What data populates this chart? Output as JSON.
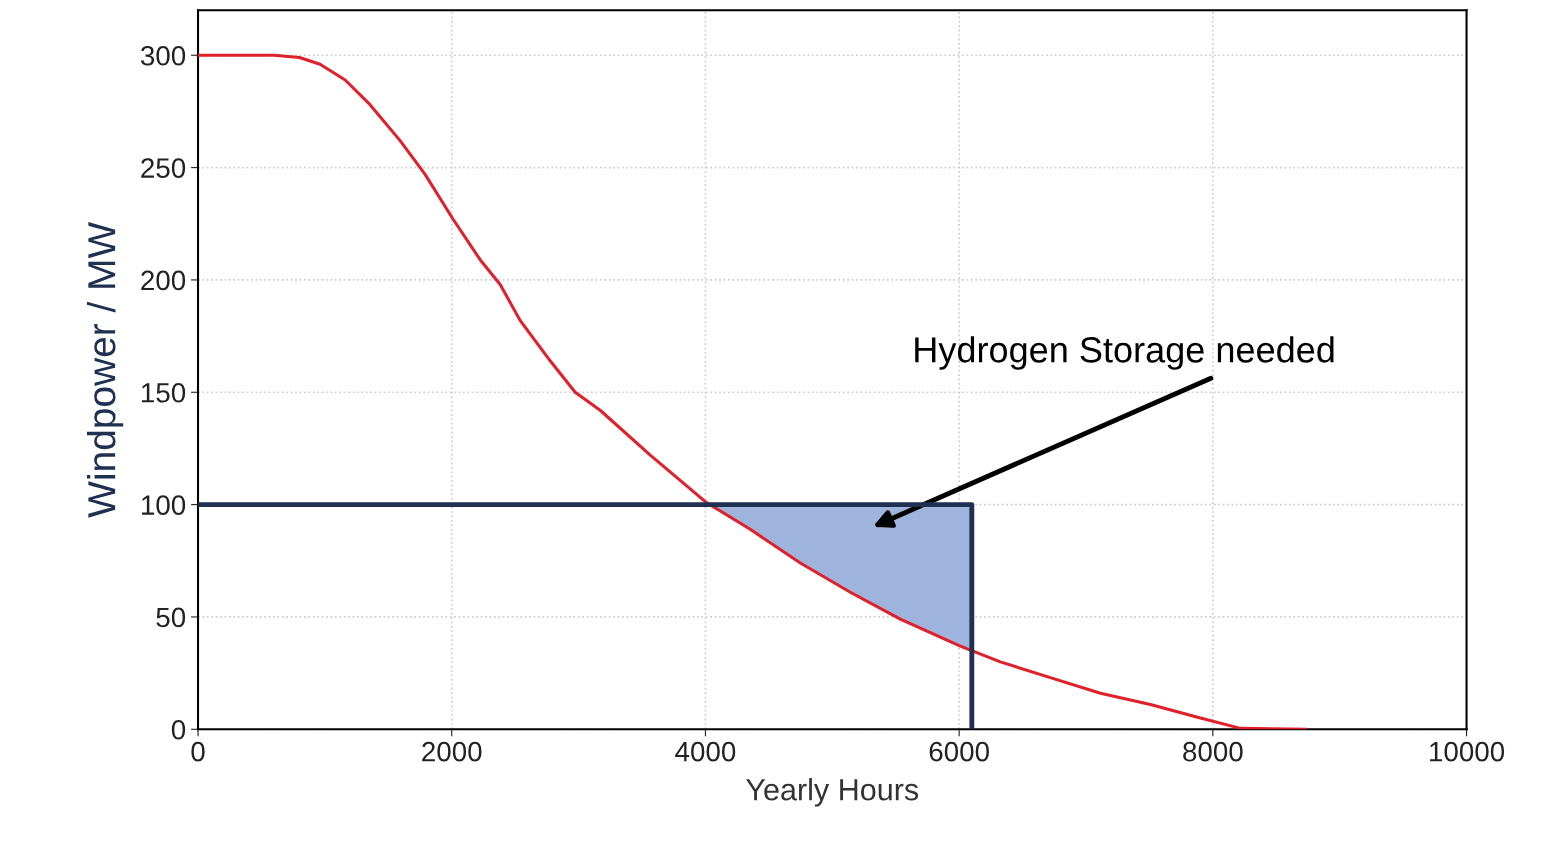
{
  "chart_data": {
    "type": "line",
    "xlabel": "Yearly Hours",
    "ylabel": "Windpower / MW",
    "xlim": [
      0,
      10000
    ],
    "xticks": [
      0,
      2000,
      4000,
      6000,
      8000,
      10000
    ],
    "ylim": [
      0,
      320
    ],
    "yticks": [
      0,
      50,
      100,
      150,
      200,
      250,
      300
    ],
    "grid": true,
    "marker": "none",
    "line_style": "solid",
    "series": [
      {
        "color": "#e0202a",
        "x": [
          0,
          600,
          800,
          962,
          1160,
          1356,
          1593,
          1790,
          2011,
          2224,
          2382,
          2539,
          2776,
          2973,
          3170,
          3565,
          4006,
          4353,
          4748,
          5142,
          5536,
          6009,
          6325,
          6719,
          7114,
          7508,
          7902,
          8218,
          8730
        ],
        "values": [
          300,
          300,
          299,
          296,
          289,
          278,
          262,
          247,
          227,
          209,
          198,
          182,
          164,
          150,
          142,
          122,
          101,
          89,
          74,
          61,
          49,
          37,
          30,
          23,
          16,
          11,
          5,
          0.4,
          0
        ]
      },
      {
        "color": "#1f3050",
        "x": [
          0,
          6100,
          6100
        ],
        "values": [
          100,
          100,
          0
        ]
      }
    ],
    "annotations": [
      "Hydrogen Storage needed"
    ]
  }
}
